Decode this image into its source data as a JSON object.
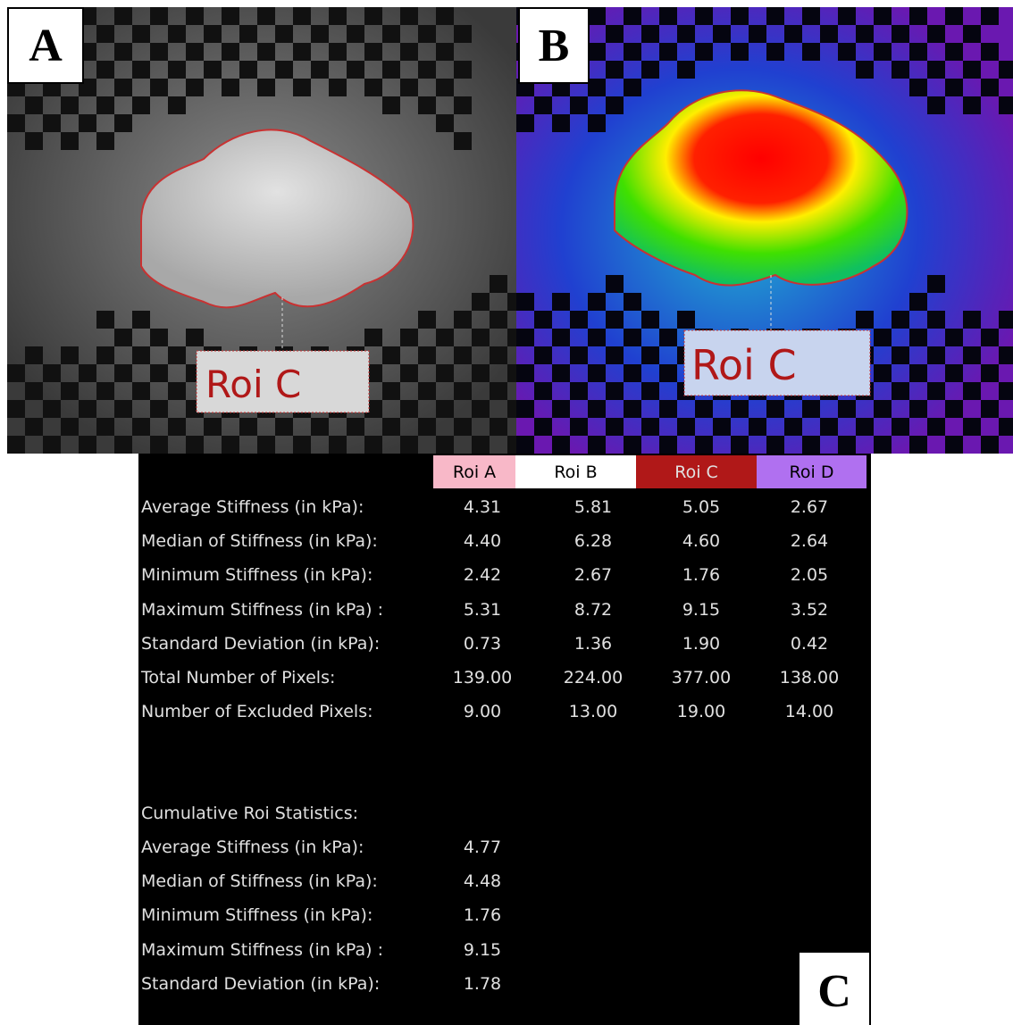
{
  "panels": [
    {
      "label": "A",
      "roi_label": "Roi C"
    },
    {
      "label": "B",
      "roi_label": "Roi C"
    }
  ],
  "table": {
    "columns": [
      "Roi A",
      "Roi B",
      "Roi C",
      "Roi D"
    ],
    "rows": [
      {
        "label": "Average Stiffness (in kPa):",
        "values": [
          "4.31",
          "5.81",
          "5.05",
          "2.67"
        ]
      },
      {
        "label": "Median of Stiffness (in kPa):",
        "values": [
          "4.40",
          "6.28",
          "4.60",
          "2.64"
        ]
      },
      {
        "label": "Minimum Stiffness (in kPa):",
        "values": [
          "2.42",
          "2.67",
          "1.76",
          "2.05"
        ]
      },
      {
        "label": "Maximum Stiffness (in kPa) :",
        "values": [
          "5.31",
          "8.72",
          "9.15",
          "3.52"
        ]
      },
      {
        "label": "Standard Deviation (in kPa):",
        "values": [
          "0.73",
          "1.36",
          "1.90",
          "0.42"
        ]
      },
      {
        "label": "Total Number of Pixels:",
        "values": [
          "139.00",
          "224.00",
          "377.00",
          "138.00"
        ]
      },
      {
        "label": "Number of Excluded Pixels:",
        "values": [
          "9.00",
          "13.00",
          "19.00",
          "14.00"
        ]
      }
    ]
  },
  "cumulative": {
    "title": "Cumulative Roi Statistics:",
    "rows": [
      {
        "label": "Average Stiffness (in kPa):",
        "value": "4.77"
      },
      {
        "label": "Median of Stiffness (in kPa):",
        "value": "4.48"
      },
      {
        "label": "Minimum Stiffness (in kPa):",
        "value": "1.76"
      },
      {
        "label": "Maximum Stiffness (in kPa) :",
        "value": "9.15"
      },
      {
        "label": "Standard Deviation (in kPa):",
        "value": "1.78"
      }
    ]
  },
  "panel_c_label": "C"
}
